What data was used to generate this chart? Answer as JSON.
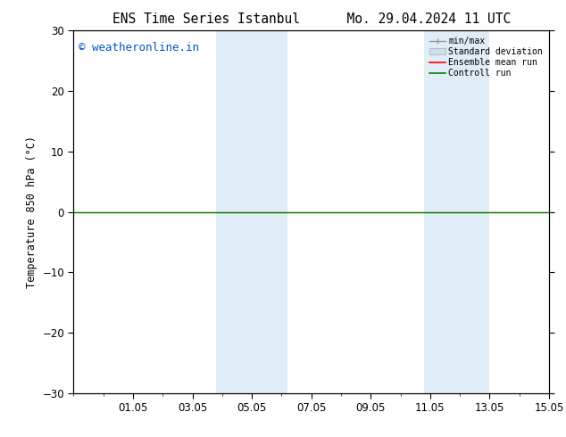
{
  "title_left": "ENS Time Series Istanbul",
  "title_right": "Mo. 29.04.2024 11 UTC",
  "ylabel": "Temperature 850 hPa (°C)",
  "watermark": "© weatheronline.in",
  "watermark_color": "#0055cc",
  "ylim": [
    -30,
    30
  ],
  "yticks": [
    -30,
    -20,
    -10,
    0,
    10,
    20,
    30
  ],
  "bg_color": "#ffffff",
  "plot_bg_color": "#ffffff",
  "shade_color": "#cce0f0",
  "shade_alpha": 0.6,
  "control_run_color": "#008000",
  "ensemble_mean_color": "#ff0000",
  "xtick_labels": [
    "01.05",
    "03.05",
    "05.05",
    "07.05",
    "09.05",
    "11.05",
    "13.05",
    "15.05"
  ],
  "font_size": 8.5,
  "title_fontsize": 10.5
}
